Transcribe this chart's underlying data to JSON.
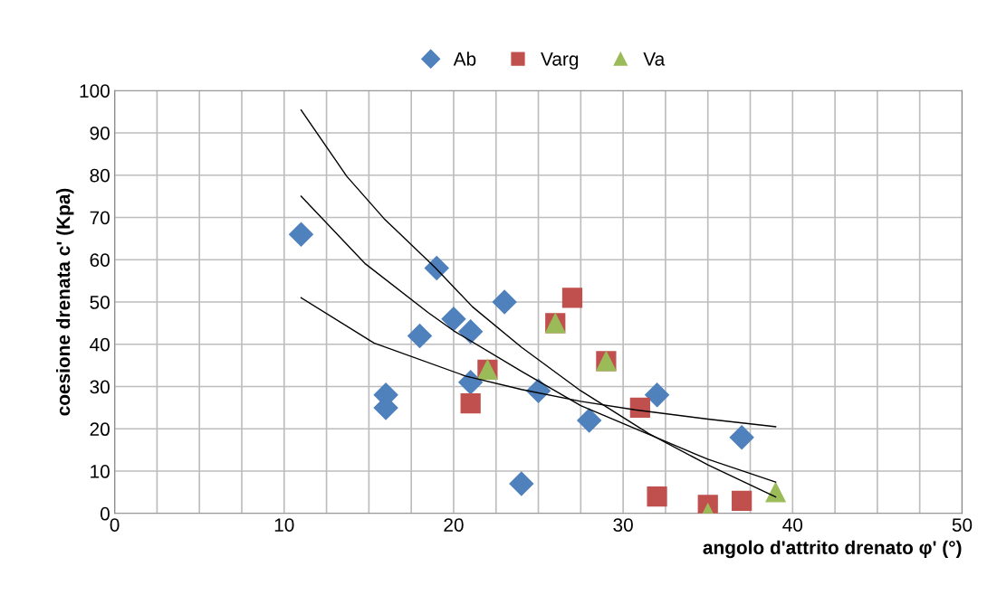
{
  "chart_data": {
    "type": "scatter",
    "xlabel": "angolo d'attrito drenato φ' (°)",
    "ylabel": "coesione drenata c' (Kpa)",
    "xlim": [
      0,
      50
    ],
    "xticks": [
      0,
      {
        "value": 2.5,
        "label": null
      },
      {
        "value": 5,
        "label": null
      },
      {
        "value": 7.5,
        "label": null
      },
      10,
      {
        "value": 12.5,
        "label": null
      },
      {
        "value": 15,
        "label": null
      },
      {
        "value": 17.5,
        "label": null
      },
      20,
      {
        "value": 22.5,
        "label": null
      },
      {
        "value": 25,
        "label": null
      },
      {
        "value": 27.5,
        "label": null
      },
      30,
      {
        "value": 32.5,
        "label": null
      },
      {
        "value": 35,
        "label": null
      },
      {
        "value": 37.5,
        "label": null
      },
      40,
      {
        "value": 42.5,
        "label": null
      },
      {
        "value": 45,
        "label": null
      },
      {
        "value": 47.5,
        "label": null
      },
      50
    ],
    "ylim": [
      0,
      100
    ],
    "yticks": [
      0,
      10,
      20,
      30,
      40,
      50,
      60,
      70,
      80,
      90,
      100
    ],
    "grid": true,
    "legend": "top",
    "series": [
      {
        "name": "Ab",
        "color": "#4f81bd",
        "marker": "diamond",
        "x": [
          11,
          19,
          23,
          20,
          18,
          21,
          16,
          16,
          21,
          25,
          24,
          28,
          32,
          37
        ],
        "values": [
          66,
          58,
          50,
          46,
          42,
          43,
          28,
          25,
          31,
          29,
          7,
          22,
          28,
          18
        ]
      },
      {
        "name": "Varg",
        "color": "#c0504d",
        "marker": "square",
        "x": [
          21,
          22,
          26,
          27,
          29,
          31,
          32,
          35,
          37
        ],
        "values": [
          26,
          34,
          45,
          51,
          36,
          25,
          4,
          2,
          3
        ]
      },
      {
        "name": "Va",
        "color": "#9bbb59",
        "marker": "triangle",
        "x": [
          22,
          26,
          29,
          35,
          39
        ],
        "values": [
          34,
          45,
          36,
          0,
          5
        ]
      },
      {
        "type": "line",
        "color": "#000000",
        "marker": "none",
        "x": [
          11,
          13.7,
          15.9,
          18.9,
          21.1,
          24,
          27.5,
          31.5,
          35,
          39
        ],
        "values": [
          95.4,
          79.7,
          69.7,
          58.2,
          48.9,
          39.3,
          29,
          18.9,
          11.5,
          3.9
        ]
      },
      {
        "type": "line",
        "color": "#000000",
        "marker": "none",
        "x": [
          11,
          14.8,
          18.5,
          20,
          24,
          27.5,
          31.8,
          35,
          39
        ],
        "values": [
          75,
          59,
          47.5,
          43.2,
          33.6,
          25.5,
          18.2,
          12.8,
          7.4
        ]
      },
      {
        "type": "line",
        "color": "#000000",
        "marker": "none",
        "x": [
          11,
          15.3,
          20.7,
          24,
          27.5,
          30.7,
          35,
          39
        ],
        "values": [
          51,
          40.3,
          32.5,
          29.3,
          26.5,
          24.5,
          22.3,
          20.5
        ]
      }
    ]
  }
}
